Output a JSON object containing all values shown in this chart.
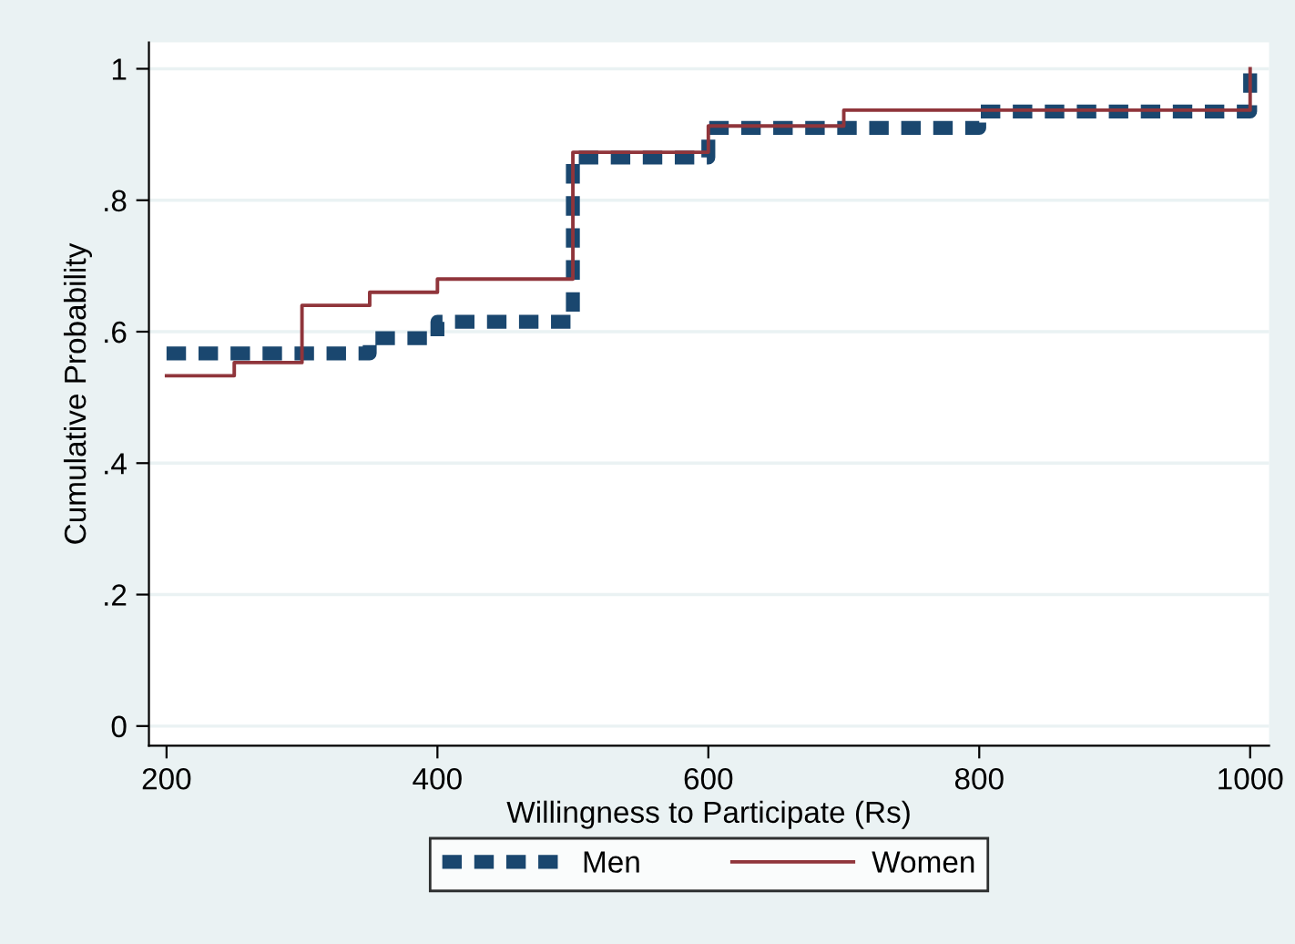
{
  "chart_data": {
    "type": "step",
    "xlabel": "Willingness to Participate (Rs)",
    "ylabel": "Cumulative Probability",
    "xlim": [
      187,
      1014
    ],
    "ylim": [
      -0.03,
      1.04
    ],
    "xticks": [
      200,
      400,
      600,
      800,
      1000
    ],
    "yticks": [
      {
        "value": 0,
        "label": "0"
      },
      {
        "value": 0.2,
        "label": ".2"
      },
      {
        "value": 0.4,
        "label": ".4"
      },
      {
        "value": 0.6,
        "label": ".6"
      },
      {
        "value": 0.8,
        "label": ".8"
      },
      {
        "value": 1,
        "label": "1"
      }
    ],
    "grid": "y",
    "legend": "bottom",
    "series": [
      {
        "name": "Men",
        "color": "#1a476f",
        "line_style": "dashed",
        "x": [
          200,
          350,
          400,
          500,
          600,
          800,
          1000
        ],
        "values": [
          0.567,
          0.59,
          0.615,
          0.865,
          0.91,
          0.935,
          1.0
        ]
      },
      {
        "name": "Women",
        "color": "#90353b",
        "line_style": "solid",
        "x": [
          200,
          250,
          300,
          350,
          400,
          500,
          600,
          700,
          1000
        ],
        "values": [
          0.533,
          0.553,
          0.64,
          0.66,
          0.68,
          0.873,
          0.913,
          0.937,
          1.0
        ]
      }
    ]
  }
}
